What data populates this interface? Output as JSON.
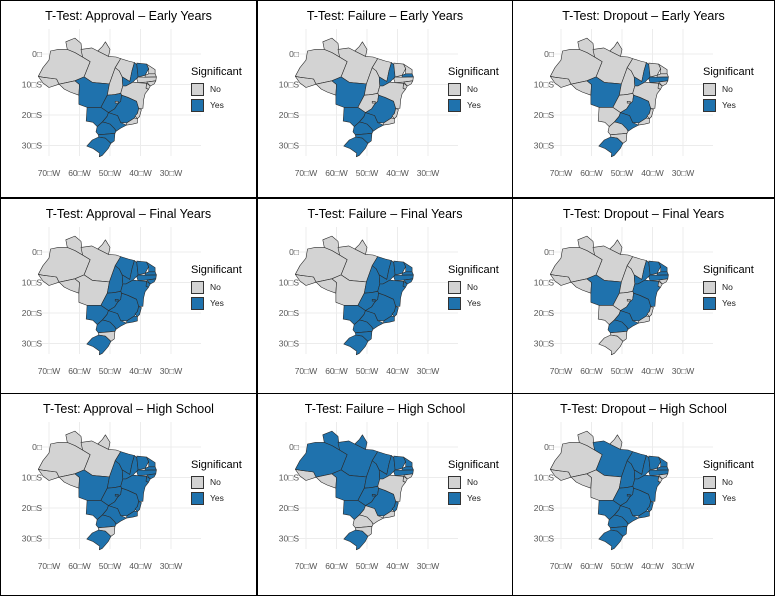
{
  "legend": {
    "title": "Significant",
    "no_label": "No",
    "yes_label": "Yes"
  },
  "colors": {
    "yes": "#1f72ad",
    "no": "#d3d3d3",
    "border": "#2b2b2b",
    "grid": "#ececec",
    "tick": "#555555"
  },
  "axis": {
    "lon_ticks": [
      "70□W",
      "60□W",
      "50□W",
      "40□W",
      "30□W"
    ],
    "lat_ticks": [
      "0□",
      "10□S",
      "20□S",
      "30□S"
    ]
  },
  "panels": [
    {
      "title": "T-Test: Approval – Early Years",
      "significant": [
        "MT",
        "GO",
        "MS",
        "MG",
        "SP",
        "PR",
        "SC",
        "RS",
        "PI",
        "CE"
      ]
    },
    {
      "title": "T-Test: Failure – Early Years",
      "significant": [
        "MT",
        "MS",
        "SP",
        "PR",
        "SC",
        "RS",
        "MG",
        "PI",
        "PB"
      ]
    },
    {
      "title": "T-Test: Dropout – Early Years",
      "significant": [
        "MT",
        "SP",
        "RS",
        "PI",
        "PE",
        "MG"
      ]
    },
    {
      "title": "T-Test: Approval – Final Years",
      "significant": [
        "MA",
        "PI",
        "CE",
        "RN",
        "PB",
        "PE",
        "BA",
        "TO",
        "GO",
        "MG",
        "MS",
        "SP",
        "PR",
        "RS",
        "ES",
        "RJ",
        "SE",
        "AL",
        "DF"
      ]
    },
    {
      "title": "T-Test: Failure – Final Years",
      "significant": [
        "MA",
        "PI",
        "CE",
        "RN",
        "PB",
        "PE",
        "BA",
        "TO",
        "GO",
        "MG",
        "MS",
        "SP",
        "PR",
        "SC",
        "RS",
        "ES",
        "RJ",
        "SE",
        "AL",
        "DF"
      ]
    },
    {
      "title": "T-Test: Dropout – Final Years",
      "significant": [
        "MT",
        "PI",
        "CE",
        "PE",
        "BA",
        "MG",
        "SP",
        "PR",
        "RN",
        "PB"
      ]
    },
    {
      "title": "T-Test: Approval – High School",
      "significant": [
        "MA",
        "PI",
        "CE",
        "RN",
        "PB",
        "PE",
        "BA",
        "TO",
        "GO",
        "MG",
        "MT",
        "MS",
        "SP",
        "PR",
        "RS",
        "ES",
        "RJ",
        "AL",
        "SE",
        "DF"
      ]
    },
    {
      "title": "T-Test: Failure – High School",
      "significant": [
        "AM",
        "RR",
        "PA",
        "AP",
        "MA",
        "PI",
        "CE",
        "RN",
        "PB",
        "PE",
        "TO",
        "MT",
        "MS",
        "GO",
        "MG",
        "RS",
        "ES",
        "DF"
      ]
    },
    {
      "title": "T-Test: Dropout – High School",
      "significant": [
        "PA",
        "MA",
        "PI",
        "CE",
        "RN",
        "PB",
        "PE",
        "BA",
        "TO",
        "GO",
        "MG",
        "MS",
        "SP",
        "PR",
        "SC",
        "RS",
        "ES",
        "RJ",
        "DF"
      ]
    }
  ]
}
